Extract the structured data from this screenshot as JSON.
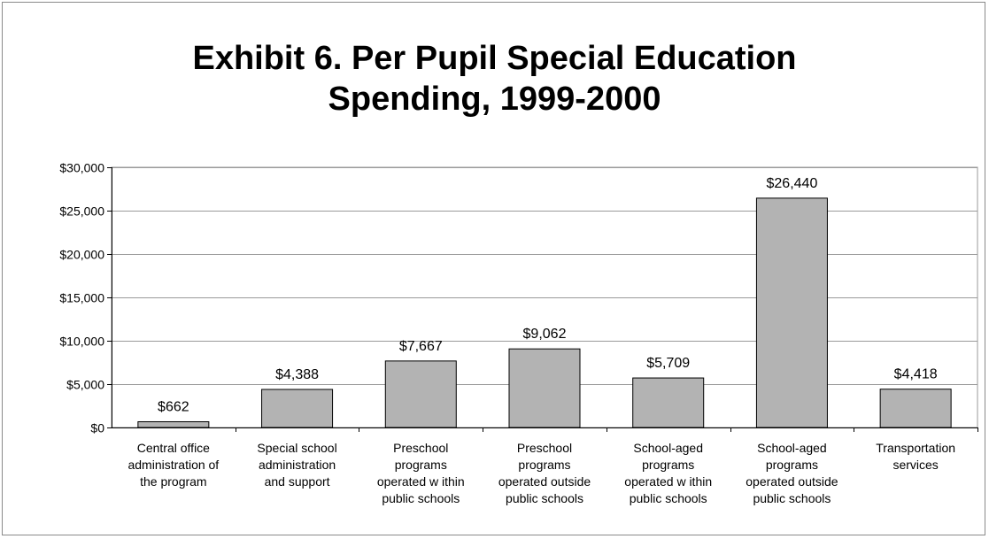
{
  "chart_data": {
    "type": "bar",
    "title_lines": [
      "Exhibit 6. Per Pupil Special Education",
      "Spending, 1999-2000"
    ],
    "categories": [
      [
        "Central office",
        "administration of",
        "the program"
      ],
      [
        "Special school",
        "administration",
        "and support"
      ],
      [
        "Preschool",
        "programs",
        "operated w ithin",
        "public schools"
      ],
      [
        "Preschool",
        "programs",
        "operated outside",
        "public schools"
      ],
      [
        "School-aged",
        "programs",
        "operated w ithin",
        "public schools"
      ],
      [
        "School-aged",
        "programs",
        "operated outside",
        "public schools"
      ],
      [
        "Transportation",
        "services"
      ]
    ],
    "values": [
      662,
      4388,
      7667,
      9062,
      5709,
      26440,
      4418
    ],
    "data_labels": [
      "$662",
      "$4,388",
      "$7,667",
      "$9,062",
      "$5,709",
      "$26,440",
      "$4,418"
    ],
    "y_ticks": [
      0,
      5000,
      10000,
      15000,
      20000,
      25000,
      30000
    ],
    "y_tick_labels": [
      "$0",
      "$5,000",
      "$10,000",
      "$15,000",
      "$20,000",
      "$25,000",
      "$30,000"
    ],
    "ylim": [
      0,
      30000
    ],
    "grid": true,
    "legend": "none",
    "colors": {
      "bar": "#b3b3b3",
      "bar_stroke": "#000000",
      "grid": "#9a9a9a",
      "axis": "#000000"
    }
  }
}
